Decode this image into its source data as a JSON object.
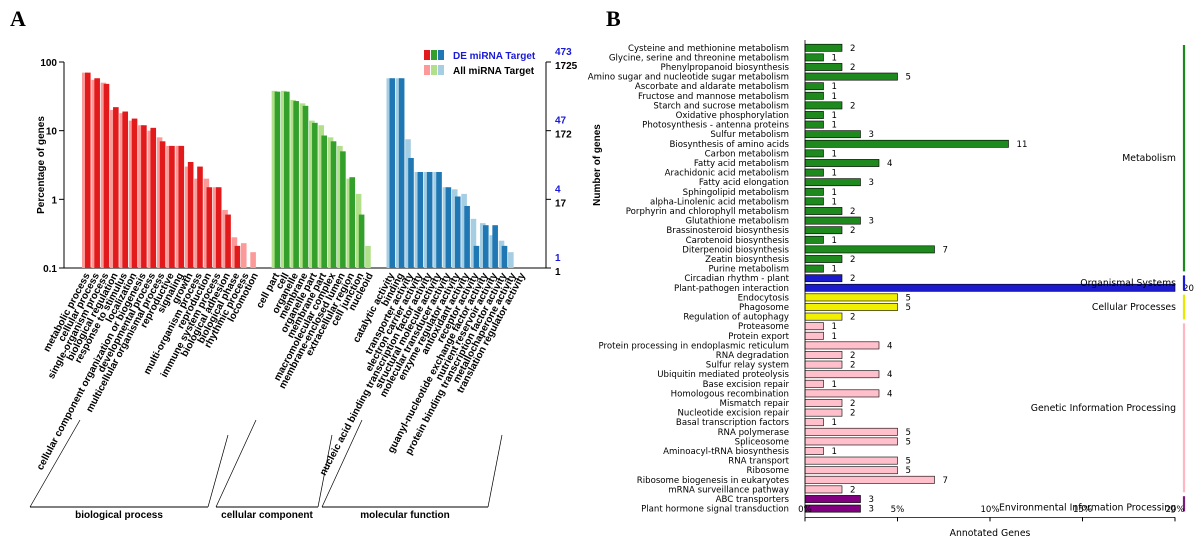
{
  "panels": {
    "a": "A",
    "b": "B"
  },
  "chart_data": [
    {
      "type": "bar",
      "title": "",
      "ylabel": "Percentage of genes",
      "y2label": "Number of genes",
      "yscale": "log",
      "ylim": [
        0.1,
        100
      ],
      "yticks": [
        "100",
        "10",
        "1",
        "0.1"
      ],
      "y2ticks_de": [
        "473",
        "47",
        "4",
        "1"
      ],
      "y2ticks_all": [
        "1725",
        "172",
        "17",
        "1"
      ],
      "legend": [
        {
          "label": "DE miRNA Target",
          "colors": [
            "#e31a1c",
            "#33a02c",
            "#1f78b4"
          ]
        },
        {
          "label": "All miRNA Target",
          "colors": [
            "#fb9a99",
            "#b2df8a",
            "#a6cee3"
          ]
        }
      ],
      "groups": [
        {
          "name": "biological process",
          "colors": [
            "#e31a1c",
            "#fb9a99"
          ],
          "categories": [
            "metabolic process",
            "cellular process",
            "single-organism process",
            "biological regulation",
            "response to stimulus",
            "localization",
            "cellular component organization or biogenesis",
            "developmental process",
            "multicellular organismal process",
            "reproductive",
            "signaling",
            "growth",
            "multi-organism process",
            "reproduction",
            "immune system process",
            "biological adhesion",
            "biological phase",
            "rhythmic process",
            "locomotion"
          ],
          "all": [
            70,
            55,
            50,
            20,
            18,
            14,
            12,
            10,
            8,
            6,
            6,
            3,
            2,
            2,
            1.5,
            0.7,
            0.28,
            0.23,
            0.17
          ],
          "de": [
            70,
            58,
            48,
            22,
            19,
            15,
            12,
            11,
            7,
            6,
            6,
            3.5,
            3,
            1.5,
            1.5,
            0.6,
            0.21,
            null,
            null
          ]
        },
        {
          "name": "cellular component",
          "colors": [
            "#33a02c",
            "#b2df8a"
          ],
          "categories": [
            "cell part",
            "cell",
            "organelle",
            "membrane",
            "organelle part",
            "membrane part",
            "macromolecular complex",
            "membrane-enclosed lumen",
            "extracellular region",
            "cell junction",
            "nucleoid"
          ],
          "all": [
            38,
            38,
            28,
            25,
            14,
            12,
            8,
            6,
            2,
            1.2,
            0.21
          ],
          "de": [
            37,
            37,
            27,
            23,
            13,
            8.5,
            7,
            5,
            2.1,
            0.6,
            null
          ]
        },
        {
          "name": "molecular function",
          "colors": [
            "#1f78b4",
            "#a6cee3"
          ],
          "categories": [
            "catalytic activity",
            "binding",
            "transporter activity",
            "electron carrier activity",
            "nucleic acid binding transcription factor activity",
            "structural molecule activity",
            "molecular transducer activity",
            "enzyme regulator activity",
            "antioxidant activity",
            "receptor activity",
            "guanyl-nucleotide exchange factor activity",
            "nutrient reservoir activity",
            "protein binding transcription factor activity",
            "metallochaperone activity",
            "translation regulator activity"
          ],
          "all": [
            58,
            58,
            7.5,
            2.5,
            2.5,
            2.5,
            1.5,
            1.4,
            1.2,
            0.52,
            0.45,
            0.3,
            0.25,
            0.17,
            null
          ],
          "de": [
            58,
            58,
            4,
            2.5,
            2.5,
            2.5,
            1.5,
            1.1,
            0.8,
            0.21,
            0.42,
            0.42,
            0.21,
            null,
            null
          ]
        }
      ]
    },
    {
      "type": "bar",
      "orientation": "horizontal",
      "xlabel": "Annotated Genes",
      "xlim": [
        0,
        20
      ],
      "xticks": [
        "0%",
        "5%",
        "10%",
        "15%",
        "20%"
      ],
      "groups": [
        {
          "name": "Metabolism",
          "color": "#1a8a1a",
          "bar": "#1e8a1e",
          "items": [
            {
              "label": "Cysteine and methionine metabolism",
              "value": 2
            },
            {
              "label": "Glycine, serine and threonine metabolism",
              "value": 1
            },
            {
              "label": "Phenylpropanoid biosynthesis",
              "value": 2
            },
            {
              "label": "Amino sugar and nucleotide sugar metabolism",
              "value": 5
            },
            {
              "label": "Ascorbate and aldarate metabolism",
              "value": 1
            },
            {
              "label": "Fructose and mannose metabolism",
              "value": 1
            },
            {
              "label": "Starch and sucrose metabolism",
              "value": 2
            },
            {
              "label": "Oxidative phosphorylation",
              "value": 1
            },
            {
              "label": "Photosynthesis - antenna proteins",
              "value": 1
            },
            {
              "label": "Sulfur metabolism",
              "value": 3
            },
            {
              "label": "Biosynthesis of amino acids",
              "value": 11
            },
            {
              "label": "Carbon metabolism",
              "value": 1
            },
            {
              "label": "Fatty acid metabolism",
              "value": 4
            },
            {
              "label": "Arachidonic acid metabolism",
              "value": 1
            },
            {
              "label": "Fatty acid elongation",
              "value": 3
            },
            {
              "label": "Sphingolipid metabolism",
              "value": 1
            },
            {
              "label": "alpha-Linolenic acid metabolism",
              "value": 1
            },
            {
              "label": "Porphyrin and chlorophyll metabolism",
              "value": 2
            },
            {
              "label": "Glutathione metabolism",
              "value": 3
            },
            {
              "label": "Brassinosteroid biosynthesis",
              "value": 2
            },
            {
              "label": "Carotenoid biosynthesis",
              "value": 1
            },
            {
              "label": "Diterpenoid biosynthesis",
              "value": 7
            },
            {
              "label": "Zeatin biosynthesis",
              "value": 2
            },
            {
              "label": "Purine metabolism",
              "value": 1
            }
          ]
        },
        {
          "name": "Organismal Systems",
          "color": "#1a1ad6",
          "bar": "#1a1acc",
          "items": [
            {
              "label": "Circadian rhythm - plant",
              "value": 2
            },
            {
              "label": "Plant-pathogen interaction",
              "value": 20
            }
          ]
        },
        {
          "name": "Cellular Processes",
          "color": "#e8e800",
          "bar": "#f0f000",
          "items": [
            {
              "label": "Endocytosis",
              "value": 5
            },
            {
              "label": "Phagosome",
              "value": 5
            },
            {
              "label": "Regulation of autophagy",
              "value": 2
            }
          ]
        },
        {
          "name": "Genetic Information Processing",
          "color": "#ffb6c1",
          "bar": "#ffc0cb",
          "items": [
            {
              "label": "Proteasome",
              "value": 1
            },
            {
              "label": "Protein export",
              "value": 1
            },
            {
              "label": "Protein processing in endoplasmic reticulum",
              "value": 4
            },
            {
              "label": "RNA degradation",
              "value": 2
            },
            {
              "label": "Sulfur relay system",
              "value": 2
            },
            {
              "label": "Ubiquitin mediated proteolysis",
              "value": 4
            },
            {
              "label": "Base excision repair",
              "value": 1
            },
            {
              "label": "Homologous recombination",
              "value": 4
            },
            {
              "label": "Mismatch repair",
              "value": 2
            },
            {
              "label": "Nucleotide excision repair",
              "value": 2
            },
            {
              "label": "Basal transcription factors",
              "value": 1
            },
            {
              "label": "RNA polymerase",
              "value": 5
            },
            {
              "label": "Spliceosome",
              "value": 5
            },
            {
              "label": "Aminoacyl-tRNA biosynthesis",
              "value": 1
            },
            {
              "label": "RNA transport",
              "value": 5
            },
            {
              "label": "Ribosome",
              "value": 5
            },
            {
              "label": "Ribosome biogenesis in eukaryotes",
              "value": 7
            },
            {
              "label": "mRNA surveillance pathway",
              "value": 2
            }
          ]
        },
        {
          "name": "Environmental Information Processing",
          "color": "#7a1a7a",
          "bar": "#800080",
          "items": [
            {
              "label": "ABC transporters",
              "value": 3
            },
            {
              "label": "Plant hormone signal transduction",
              "value": 3
            }
          ]
        }
      ]
    }
  ]
}
